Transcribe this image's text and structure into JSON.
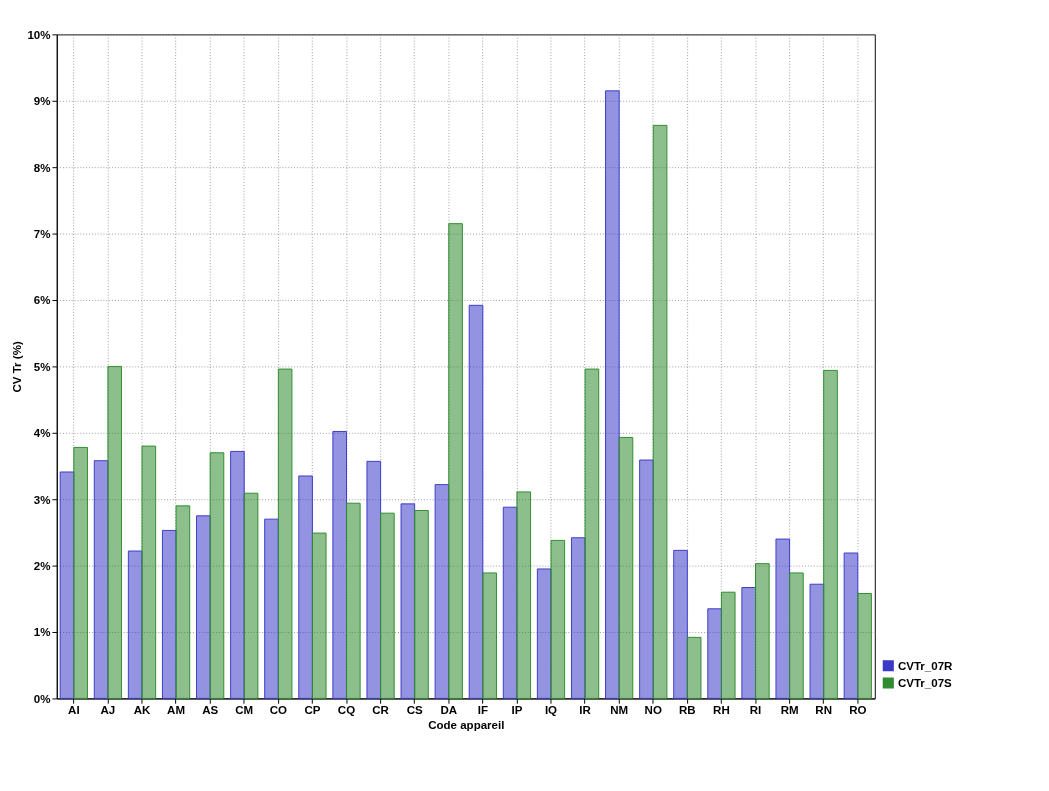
{
  "chart_data": {
    "type": "bar",
    "xlabel": "Code appareil",
    "ylabel": "CV Tr (%)",
    "categories": [
      "AI",
      "AJ",
      "AK",
      "AM",
      "AS",
      "CM",
      "CO",
      "CP",
      "CQ",
      "CR",
      "CS",
      "DA",
      "IF",
      "IP",
      "IQ",
      "IR",
      "NM",
      "NO",
      "RB",
      "RH",
      "RI",
      "RM",
      "RN",
      "RO"
    ],
    "series": [
      {
        "name": "CVTr_07R",
        "color": "#3a3ac8",
        "values": [
          3.41,
          3.58,
          2.22,
          2.53,
          2.75,
          3.72,
          2.7,
          3.35,
          4.02,
          3.57,
          2.93,
          3.22,
          5.92,
          2.88,
          1.95,
          2.42,
          9.15,
          3.59,
          2.23,
          1.35,
          1.67,
          2.4,
          1.72,
          2.19
        ]
      },
      {
        "name": "CVTr_07S",
        "color": "#2e8b2e",
        "values": [
          3.78,
          5.0,
          3.8,
          2.9,
          3.7,
          3.09,
          4.96,
          2.49,
          2.94,
          2.79,
          2.83,
          7.15,
          1.89,
          3.11,
          2.38,
          4.96,
          3.93,
          8.63,
          0.92,
          1.6,
          2.03,
          1.89,
          4.94,
          1.58
        ]
      }
    ],
    "ylim": [
      0,
      10
    ],
    "yticks": [
      {
        "value": 0,
        "label": "0%"
      },
      {
        "value": 1,
        "label": "1%"
      },
      {
        "value": 2,
        "label": "2%"
      },
      {
        "value": 3,
        "label": "3%"
      },
      {
        "value": 4,
        "label": "4%"
      },
      {
        "value": 5,
        "label": "5%"
      },
      {
        "value": 6,
        "label": "6%"
      },
      {
        "value": 7,
        "label": "7%"
      },
      {
        "value": 8,
        "label": "8%"
      },
      {
        "value": 9,
        "label": "9%"
      },
      {
        "value": 10,
        "label": "10%"
      }
    ],
    "grid": true,
    "legend": "bottom right"
  }
}
